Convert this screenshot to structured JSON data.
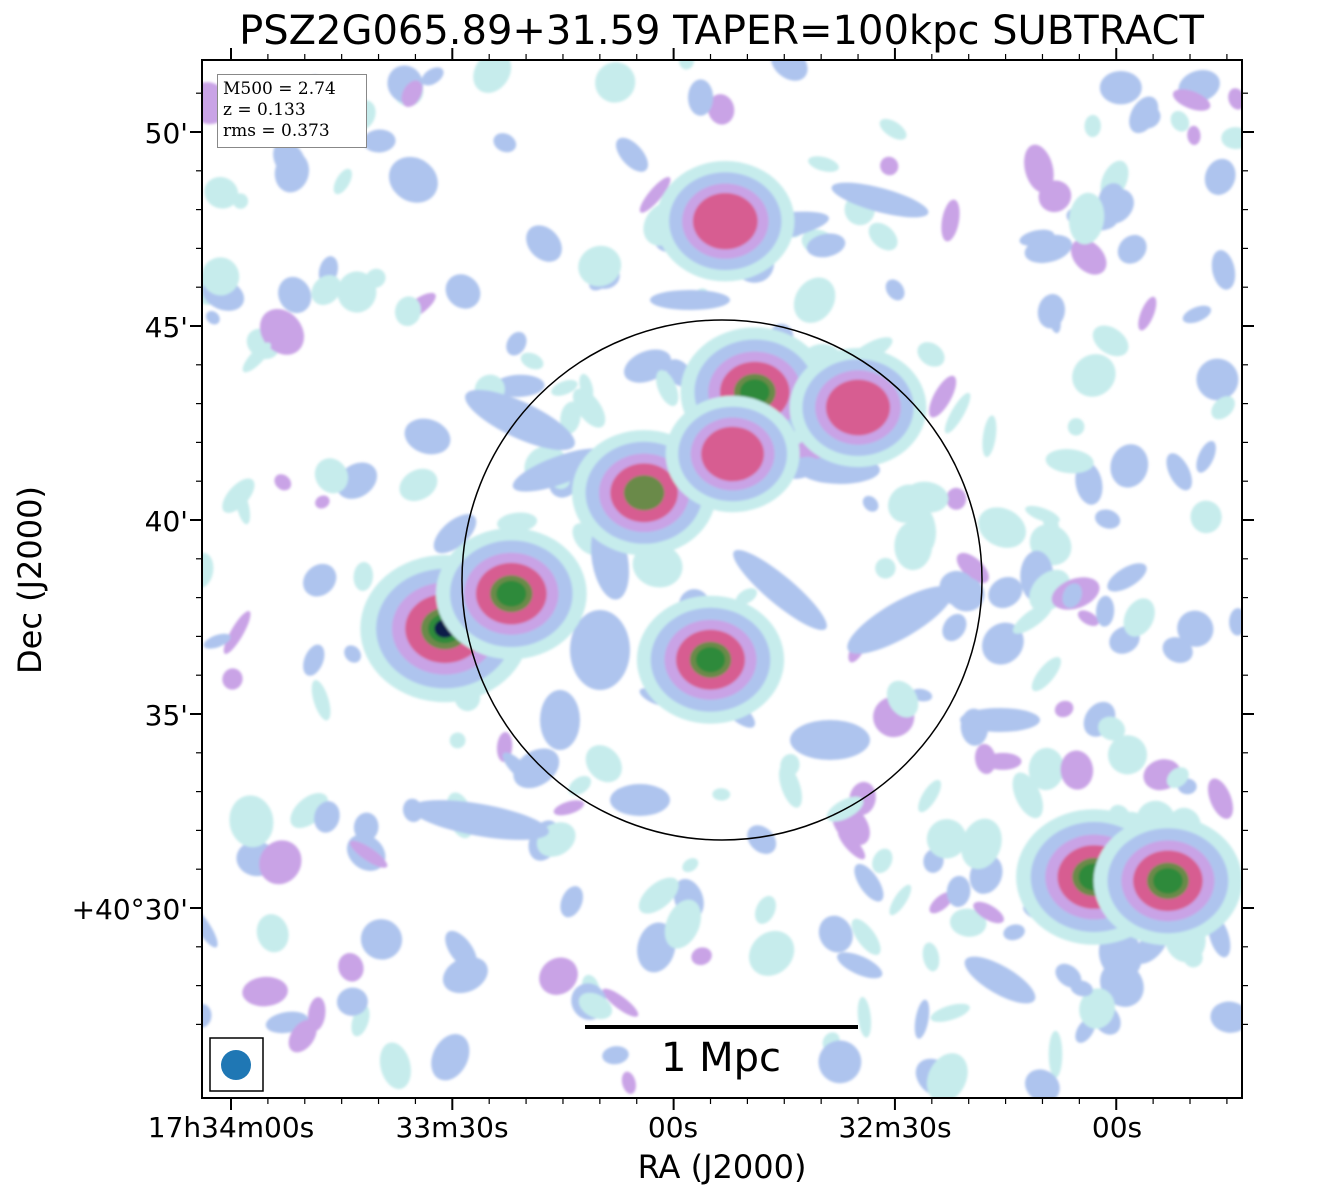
{
  "title": "PSZ2G065.89+31.59 TAPER=100kpc SUBTRACT",
  "info_box": {
    "m500": "M500 = 2.74",
    "z": "z = 0.133",
    "rms": "rms = 0.373"
  },
  "scale_bar_label": "1 Mpc",
  "colors": {
    "frame": "#000000",
    "beam": "#1f77b4",
    "circle": "#000000",
    "cmap": [
      "#ffffff",
      "#c6ecec",
      "#aec4ee",
      "#c9a3e6",
      "#d75d91",
      "#6a8a4a",
      "#2d8a3a",
      "#0b1f4a"
    ]
  },
  "chart_data": {
    "type": "heatmap",
    "xlabel": "RA (J2000)",
    "ylabel": "Dec (J2000)",
    "x_ticks": [
      "17h34m00s",
      "33m30s",
      "00s",
      "32m30s",
      "00s"
    ],
    "y_ticks": [
      "50'",
      "45'",
      "40'",
      "35'",
      "+40°30'"
    ],
    "colormap": "cubehelix-like (white → cyan → lavender → pink → green → navy)",
    "overlay_circle": true,
    "beam_marker": true,
    "scale_bar": "1 Mpc",
    "sources": [
      {
        "ra": "17h33m31s",
        "dec": "+40°37.2'",
        "peak": 1.0
      },
      {
        "ra": "17h33m22s",
        "dec": "+40°38.1'",
        "peak": 0.75
      },
      {
        "ra": "17h32m55s",
        "dec": "+40°36.4'",
        "peak": 0.7
      },
      {
        "ra": "17h33m04s",
        "dec": "+40°40.7'",
        "peak": 0.66
      },
      {
        "ra": "17h32m49s",
        "dec": "+40°43.3'",
        "peak": 0.72
      },
      {
        "ra": "17h32m52s",
        "dec": "+40°41.7'",
        "peak": 0.52
      },
      {
        "ra": "17h32m35s",
        "dec": "+40°42.9'",
        "peak": 0.56
      },
      {
        "ra": "17h32m53s",
        "dec": "+40°47.7'",
        "peak": 0.58
      },
      {
        "ra": "17h32m03s",
        "dec": "+40°30.8'",
        "peak": 0.82
      },
      {
        "ra": "17h31m53s",
        "dec": "+40°30.7'",
        "peak": 0.72
      }
    ]
  }
}
